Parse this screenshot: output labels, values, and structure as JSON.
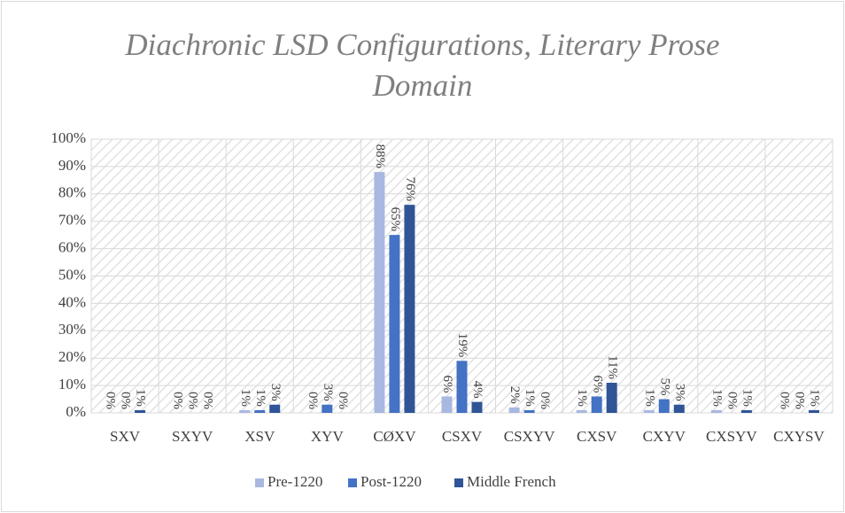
{
  "chart_data": {
    "type": "bar",
    "title": "Diachronic LSD Configurations, Literary Prose Domain",
    "categories": [
      "SXV",
      "SXYV",
      "XSV",
      "XYV",
      "CØXV",
      "CSXV",
      "CSXYV",
      "CXSV",
      "CXYV",
      "CXSYV",
      "CXYSV"
    ],
    "series": [
      {
        "name": "Pre-1220",
        "color": "#a9b8e0",
        "values": [
          0,
          0,
          1,
          0,
          88,
          6,
          2,
          1,
          1,
          1,
          0
        ],
        "value_labels": [
          "0%",
          "0%",
          "1%",
          "0%",
          "88%",
          "6%",
          "2%",
          "1%",
          "1%",
          "1%",
          "0%"
        ]
      },
      {
        "name": "Post-1220",
        "color": "#4472c4",
        "values": [
          0,
          0,
          1,
          3,
          65,
          19,
          1,
          6,
          5,
          0,
          0
        ],
        "value_labels": [
          "0%",
          "0%",
          "1%",
          "3%",
          "65%",
          "19%",
          "1%",
          "6%",
          "5%",
          "0%",
          "0%"
        ]
      },
      {
        "name": "Middle French",
        "color": "#2f5597",
        "values": [
          1,
          0,
          3,
          0,
          76,
          4,
          0,
          11,
          3,
          1,
          1
        ],
        "value_labels": [
          "1%",
          "0%",
          "3%",
          "0%",
          "76%",
          "4%",
          "0%",
          "11%",
          "3%",
          "1%",
          "1%"
        ]
      }
    ],
    "ylim": [
      0,
      100
    ],
    "yticks": [
      {
        "value": 0,
        "label": "0%"
      },
      {
        "value": 10,
        "label": "10%"
      },
      {
        "value": 20,
        "label": "20%"
      },
      {
        "value": 30,
        "label": "30%"
      },
      {
        "value": 40,
        "label": "40%"
      },
      {
        "value": 50,
        "label": "50%"
      },
      {
        "value": 60,
        "label": "60%"
      },
      {
        "value": 70,
        "label": "70%"
      },
      {
        "value": 80,
        "label": "80%"
      },
      {
        "value": 90,
        "label": "90%"
      },
      {
        "value": 100,
        "label": "100%"
      }
    ],
    "grid": true,
    "legend": "bottom"
  }
}
